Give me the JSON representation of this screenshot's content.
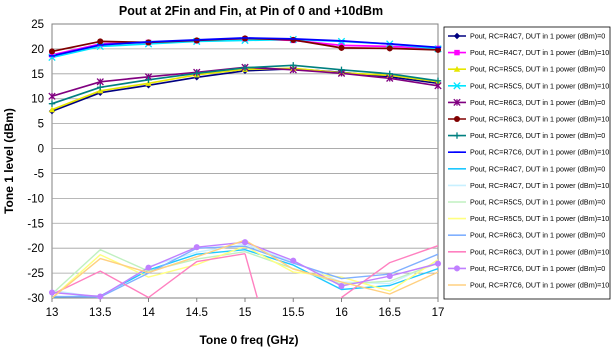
{
  "chart_data": {
    "type": "line",
    "title": "Pout at 2Fin and Fin, at Pin of 0 and +10dBm",
    "xlabel": "Tone 0 freq (GHz)",
    "ylabel": "Tone 1 level (dBm)",
    "xlim": [
      13,
      17
    ],
    "ylim": [
      -30,
      25
    ],
    "x_ticks": [
      "13",
      "13.5",
      "14",
      "14.5",
      "15",
      "15.5",
      "16",
      "16.5",
      "17"
    ],
    "y_ticks": [
      "25",
      "20",
      "15",
      "10",
      "5",
      "0",
      "-5",
      "-10",
      "-15",
      "-20",
      "-25",
      "-30"
    ],
    "grid": true,
    "legend_position": "right",
    "x": [
      13,
      13.5,
      14,
      14.5,
      15,
      15.5,
      16,
      16.5,
      17
    ],
    "series": [
      {
        "name": "Pout, RC=R4C7, DUT in 1 power (dBm)=0",
        "color": "#000080",
        "marker": "diamond",
        "values": [
          7.5,
          11.2,
          12.7,
          14.3,
          15.6,
          16.0,
          15.3,
          14.4,
          13.1
        ]
      },
      {
        "name": "Pout, RC=R4C7, DUT in 1 power (dBm)=10",
        "color": "#ff00ff",
        "marker": "square",
        "values": [
          18.8,
          21.0,
          21.3,
          21.6,
          22.0,
          21.7,
          20.7,
          20.5,
          20.1
        ]
      },
      {
        "name": "Pout, RC=R5C5, DUT in 1 power (dBm)=0",
        "color": "#e6e600",
        "marker": "triangle",
        "values": [
          7.8,
          11.6,
          13.1,
          14.8,
          15.9,
          16.1,
          15.2,
          14.7,
          13.4
        ]
      },
      {
        "name": "Pout, RC=R5C5, DUT in 1 power (dBm)=10",
        "color": "#00e5ff",
        "marker": "x",
        "values": [
          18.3,
          20.5,
          21.0,
          21.5,
          21.7,
          21.9,
          21.5,
          21.0,
          20.0
        ]
      },
      {
        "name": "Pout, RC=R6C3, DUT in 1 power (dBm)=0",
        "color": "#800080",
        "marker": "star",
        "values": [
          10.5,
          13.4,
          14.4,
          15.3,
          16.3,
          15.8,
          15.1,
          14.1,
          12.6
        ]
      },
      {
        "name": "Pout, RC=R6C3, DUT in 1 power (dBm)=10",
        "color": "#800000",
        "marker": "circle",
        "values": [
          19.5,
          21.5,
          21.3,
          21.7,
          22.1,
          21.8,
          20.2,
          20.1,
          19.8
        ]
      },
      {
        "name": "Pout, RC=R7C6, DUT in 1 power (dBm)=0",
        "color": "#008080",
        "marker": "plus",
        "values": [
          9.0,
          12.3,
          13.8,
          15.1,
          16.2,
          16.7,
          15.8,
          15.0,
          13.6
        ]
      },
      {
        "name": "Pout, RC=R7C6, DUT in 1 power (dBm)=10",
        "color": "#0000ff",
        "marker": "dash",
        "values": [
          18.6,
          20.8,
          21.4,
          21.8,
          22.2,
          22.0,
          21.6,
          21.0,
          20.3
        ]
      },
      {
        "name": "Pout, RC=R4C7, DUT in 1 power (dBm)=0",
        "color": "#1ec8ff",
        "marker": "none",
        "values": [
          -29.8,
          -29.6,
          -24.4,
          -21.2,
          -20.3,
          -23.4,
          -28.3,
          -27.5,
          -24.1
        ]
      },
      {
        "name": "Pout, RC=R4C7, DUT in 1 power (dBm)=10",
        "color": "#c8f0ff",
        "marker": "none",
        "values": [
          -28.5,
          -29.9,
          -23.7,
          -20.8,
          -19.2,
          -22.8,
          -26.8,
          -27.1,
          -22.7
        ]
      },
      {
        "name": "Pout, RC=R5C5, DUT in 1 power (dBm)=0",
        "color": "#c0f0c0",
        "marker": "none",
        "values": [
          -29.2,
          -20.3,
          -24.6,
          -22.2,
          -20.7,
          -24.1,
          -27.2,
          -26.6,
          -23.0
        ]
      },
      {
        "name": "Pout, RC=R5C5, DUT in 1 power (dBm)=10",
        "color": "#ffff80",
        "marker": "none",
        "values": [
          -30.0,
          -21.3,
          -25.8,
          -23.3,
          -19.6,
          -24.8,
          -25.8,
          -28.6,
          -22.3
        ]
      },
      {
        "name": "Pout, RC=R6C3, DUT in 1 power (dBm)=0",
        "color": "#80b0ff",
        "marker": "none",
        "values": [
          -29.7,
          -29.8,
          -25.0,
          -20.0,
          -19.6,
          -23.0,
          -26.1,
          -25.2,
          -21.2
        ]
      },
      {
        "name": "Pout, RC=R6C3, DUT in 1 power (dBm)=10",
        "color": "#ff80c0",
        "marker": "none",
        "values": [
          -29.3,
          -24.6,
          -29.9,
          -22.7,
          -21.1,
          null,
          -29.9,
          -22.9,
          -19.5
        ]
      },
      {
        "name": "Pout, RC=R7C6, DUT in 1 power (dBm)=0",
        "color": "#c080ff",
        "marker": "circle",
        "values": [
          -28.9,
          -29.7,
          -23.9,
          -19.8,
          -18.8,
          -22.5,
          -27.6,
          -25.6,
          -23.1
        ]
      },
      {
        "name": "Pout, RC=R7C6, DUT in 1 power (dBm)=10",
        "color": "#ffd080",
        "marker": "none",
        "values": [
          -30.0,
          -22.1,
          -24.9,
          -21.7,
          -18.4,
          -24.2,
          -26.8,
          -29.2,
          -24.8
        ]
      }
    ]
  }
}
